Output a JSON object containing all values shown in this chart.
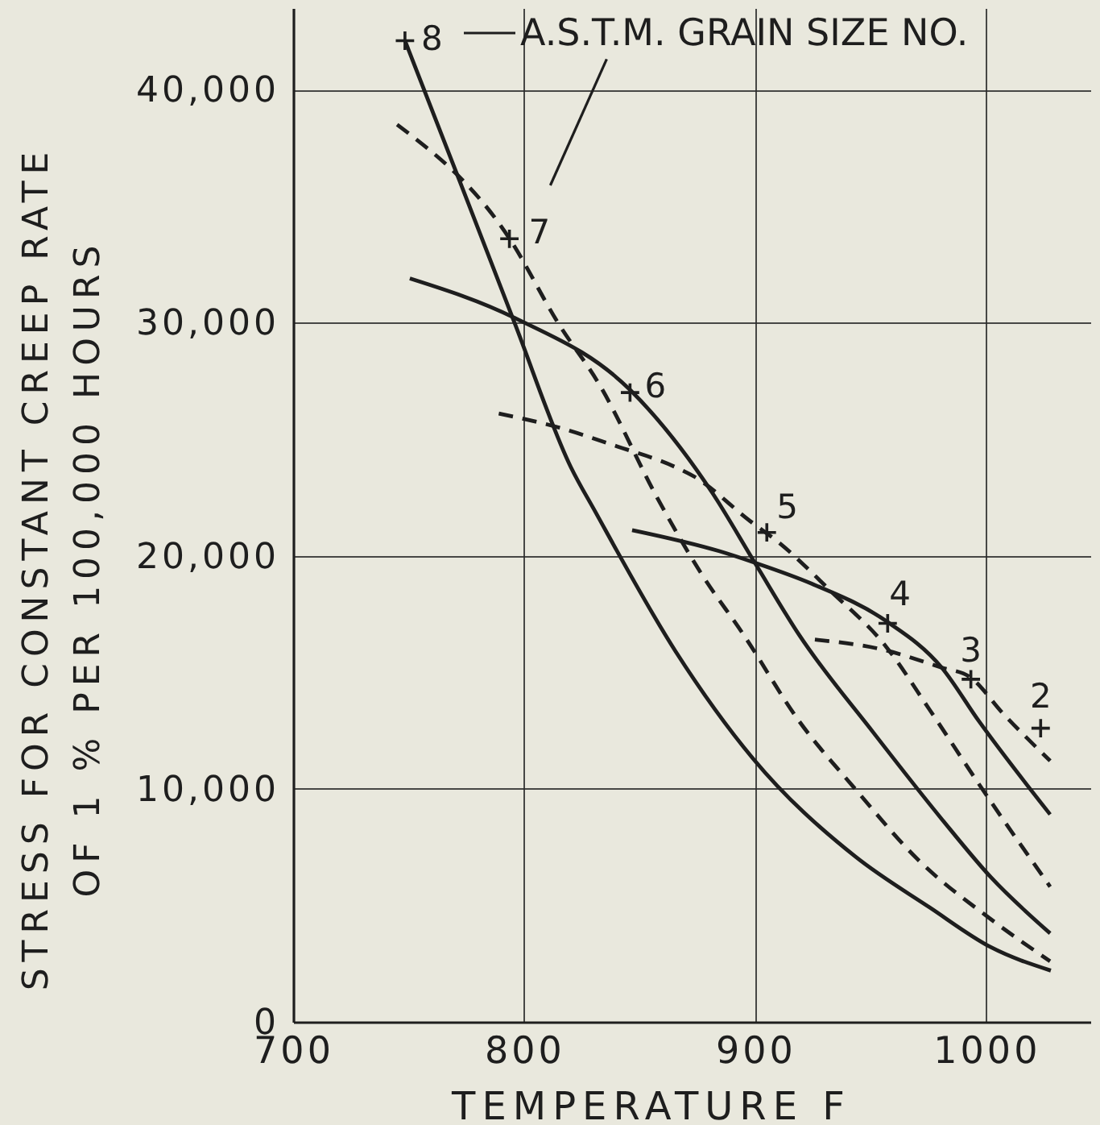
{
  "chart_data": {
    "type": "line",
    "xlabel": "TEMPERATURE F",
    "ylabel": "STRESS FOR CONSTANT CREEP RATE\nOF 1 % PER 100,000 HOURS",
    "xlim": [
      700,
      1045
    ],
    "xticks": [
      700,
      800,
      900,
      1000
    ],
    "ylim": [
      0,
      43500
    ],
    "yticks": [
      0,
      {
        "value": 10000,
        "label": "10,000"
      },
      {
        "value": 20000,
        "label": "20,000"
      },
      {
        "value": 30000,
        "label": "30,000"
      },
      {
        "value": 40000,
        "label": "40,000"
      }
    ],
    "grid": true,
    "series": [
      {
        "line_style": "solid",
        "color": "#1e1e1e",
        "x": [
          748.4,
          772,
          795.8,
          820.2,
          830.7,
          865.5,
          899,
          943.2,
          975.6,
          1002,
          1027.9
        ],
        "values": [
          42100,
          36100,
          30000,
          23800,
          21900,
          15900,
          11300,
          7100,
          4900,
          3200,
          2200
        ]
      },
      {
        "line_style": "dashed",
        "color": "#1e1e1e",
        "x": [
          745,
          793.7,
          814.6,
          832.8,
          857.5,
          876.2,
          895,
          919,
          943.2,
          970,
          1002,
          1027.6
        ],
        "values": [
          38500,
          33600,
          30000,
          27300,
          22500,
          19300,
          16600,
          12900,
          10000,
          7000,
          4400,
          2600
        ]
      },
      {
        "line_style": "solid",
        "color": "#1e1e1e",
        "x": [
          750.5,
          796,
          846,
          881.4,
          899.8,
          919,
          951.2,
          980.7,
          1002,
          1027.6
        ],
        "values": [
          31900,
          30200,
          27100,
          22700,
          19700,
          16600,
          12400,
          8700,
          6200,
          3800
        ]
      },
      {
        "line_style": "dashed",
        "color": "#1e1e1e",
        "x": [
          789,
          815,
          840,
          865.5,
          873.5,
          897.6,
          911,
          932.5,
          956.6,
          975.4,
          996.8,
          1027.6
        ],
        "values": [
          26100,
          25500,
          24700,
          23800,
          23400,
          21500,
          20500,
          18500,
          16100,
          13400,
          10200,
          5800
        ]
      },
      {
        "line_style": "solid",
        "color": "#1e1e1e",
        "x": [
          846.7,
          884.3,
          899.8,
          924.4,
          956.6,
          980.7,
          996.8,
          1027.6
        ],
        "values": [
          21100,
          20200,
          19700,
          18800,
          17200,
          15200,
          12900,
          8900
        ]
      },
      {
        "line_style": "dashed",
        "color": "#1e1e1e",
        "x": [
          925.8,
          954,
          980.7,
          992.8,
          1007.5,
          1027.6
        ],
        "values": [
          16400,
          16000,
          15200,
          14800,
          13200,
          11200
        ]
      },
      {
        "type": "scatter",
        "marker": "cross",
        "color": "#1e1e1e",
        "x": [
          748.4,
          793.6,
          845.8,
          905,
          957.3,
          993.3,
          1023.5
        ],
        "values": [
          42100,
          33600,
          27000,
          21000,
          17100,
          14700,
          12600
        ]
      }
    ],
    "annotations": [
      "A.S.T.M. GRAIN SIZE NO.",
      {
        "text": "8",
        "x": 748.4,
        "y": 42100
      },
      {
        "text": "7",
        "x": 793.6,
        "y": 33600
      },
      {
        "text": "6",
        "x": 845.8,
        "y": 27000
      },
      {
        "text": "5",
        "x": 905,
        "y": 21000
      },
      {
        "text": "4",
        "x": 957.3,
        "y": 17100
      },
      {
        "text": "3",
        "x": 993.3,
        "y": 14700
      },
      {
        "text": "2",
        "x": 1023.5,
        "y": 12600
      }
    ]
  }
}
